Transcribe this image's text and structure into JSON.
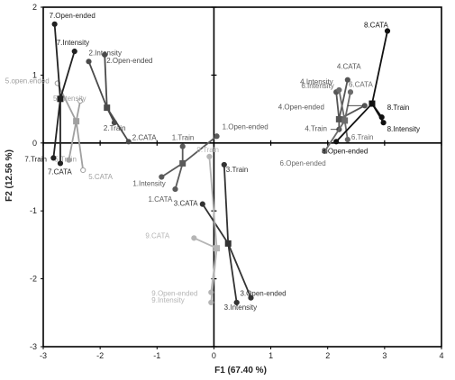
{
  "chart_data": {
    "type": "scatter",
    "xlabel": "F1 (67.40 %)",
    "ylabel": "F2 (12.56 %)",
    "xlim": [
      -3,
      4
    ],
    "ylim": [
      -3,
      2
    ],
    "xticks": [
      -3,
      -2,
      -1,
      0,
      1,
      2,
      3,
      4
    ],
    "yticks": [
      -3,
      -2,
      -1,
      0,
      1,
      2
    ],
    "zero_lines": true,
    "groups": [
      {
        "id": 1,
        "color": "#5a5a5a",
        "centroid": [
          -0.55,
          -0.3
        ],
        "points": [
          {
            "label": "1.Train",
            "x": -0.55,
            "y": -0.05
          },
          {
            "label": "1.Open-ended",
            "x": 0.05,
            "y": 0.1
          },
          {
            "label": "1.Intensity",
            "x": -0.92,
            "y": -0.5
          },
          {
            "label": "1.CATA",
            "x": -0.68,
            "y": -0.68
          }
        ]
      },
      {
        "id": 2,
        "color": "#4a4a4a",
        "centroid": [
          -1.88,
          0.52
        ],
        "points": [
          {
            "label": "2.Intensity",
            "x": -2.2,
            "y": 1.2
          },
          {
            "label": "2.Open-ended",
            "x": -1.92,
            "y": 1.3
          },
          {
            "label": "2.Train",
            "x": -1.75,
            "y": 0.3
          },
          {
            "label": "2.CATA",
            "x": -1.5,
            "y": 0.02
          }
        ]
      },
      {
        "id": 3,
        "color": "#333333",
        "centroid": [
          0.25,
          -1.48
        ],
        "points": [
          {
            "label": "3.Train",
            "x": 0.18,
            "y": -0.32
          },
          {
            "label": "3.CATA",
            "x": -0.2,
            "y": -0.9
          },
          {
            "label": "3.Open-ended",
            "x": 0.65,
            "y": -2.28
          },
          {
            "label": "3.Intensity",
            "x": 0.4,
            "y": -2.35
          }
        ]
      },
      {
        "id": 4,
        "color": "#555555",
        "centroid": [
          2.2,
          0.35
        ],
        "points": [
          {
            "label": "4.Intensity",
            "x": 2.15,
            "y": 0.75
          },
          {
            "label": "4.CATA",
            "x": 2.35,
            "y": 0.93
          },
          {
            "label": "4.Open-ended",
            "x": 2.65,
            "y": 0.55
          },
          {
            "label": "4.Train",
            "x": 2.2,
            "y": 0.2
          }
        ]
      },
      {
        "id": 5,
        "color": "#a0a0a0",
        "centroid": [
          -2.42,
          0.32
        ],
        "points": [
          {
            "label": "5.open.ended",
            "x": -2.75,
            "y": 0.88
          },
          {
            "label": "5.Intensity",
            "x": -2.35,
            "y": 0.62
          },
          {
            "label": "5.Train",
            "x": -2.55,
            "y": -0.25
          },
          {
            "label": "5.CATA",
            "x": -2.3,
            "y": -0.4
          }
        ]
      },
      {
        "id": 6,
        "color": "#6b6b6b",
        "centroid": [
          2.3,
          0.33
        ],
        "points": [
          {
            "label": "6.Intensity",
            "x": 2.2,
            "y": 0.78
          },
          {
            "label": "6.CATA",
            "x": 2.4,
            "y": 0.75
          },
          {
            "label": "6.Train",
            "x": 2.35,
            "y": 0.05
          },
          {
            "label": "6.Open-ended",
            "x": 1.95,
            "y": -0.12
          }
        ]
      },
      {
        "id": 7,
        "color": "#222222",
        "centroid": [
          -2.7,
          0.65
        ],
        "points": [
          {
            "label": "7.Open-ended",
            "x": -2.8,
            "y": 1.75
          },
          {
            "label": "7.Intensity",
            "x": -2.45,
            "y": 1.35
          },
          {
            "label": "7.Train",
            "x": -2.82,
            "y": -0.22
          },
          {
            "label": "7.CATA",
            "x": -2.7,
            "y": -0.3
          }
        ]
      },
      {
        "id": 8,
        "color": "#111111",
        "centroid": [
          2.78,
          0.58
        ],
        "points": [
          {
            "label": "8.CATA",
            "x": 3.05,
            "y": 1.65
          },
          {
            "label": "8.Train",
            "x": 2.95,
            "y": 0.38
          },
          {
            "label": "8.Intensity",
            "x": 2.98,
            "y": 0.3
          },
          {
            "label": "8.Open-ended",
            "x": 2.15,
            "y": 0.02
          }
        ]
      },
      {
        "id": 9,
        "color": "#b5b5b5",
        "centroid": [
          0.05,
          -1.55
        ],
        "points": [
          {
            "label": "9.Train",
            "x": -0.08,
            "y": -0.2
          },
          {
            "label": "9.CATA",
            "x": -0.35,
            "y": -1.4
          },
          {
            "label": "9.Open-ended",
            "x": -0.05,
            "y": -2.2
          },
          {
            "label": "9.Intensity",
            "x": -0.05,
            "y": -2.35
          }
        ]
      }
    ]
  }
}
